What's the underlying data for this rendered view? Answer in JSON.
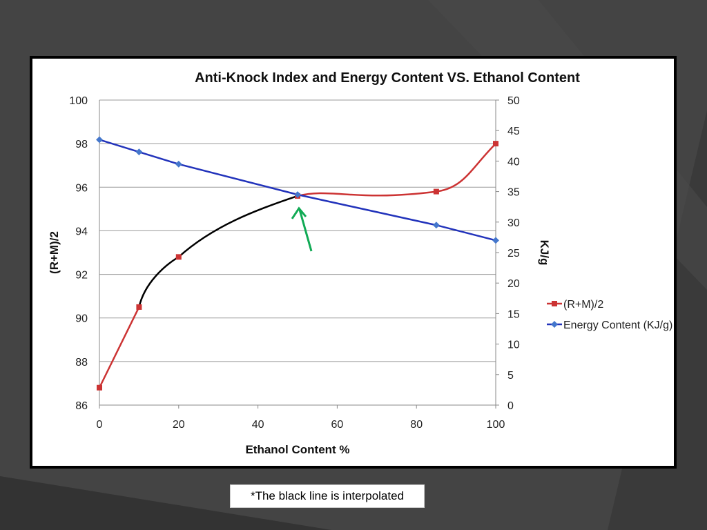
{
  "slide": {
    "note": "*The black line is interpolated",
    "colors": {
      "background": "#3a3a3a",
      "series_rm": "#cc3333",
      "series_energy": "#2233bb",
      "interpolated_line": "#000000",
      "arrow": "#11aa55"
    }
  },
  "chart_data": {
    "type": "line",
    "title": "Anti-Knock Index and Energy Content VS. Ethanol Content",
    "xlabel": "Ethanol Content %",
    "ylabel": "(R+M)/2",
    "y2label": "KJ/g",
    "xlim": [
      0,
      100
    ],
    "ylim": [
      86,
      100
    ],
    "y2lim": [
      0,
      50
    ],
    "xticks": [
      "0",
      "20",
      "40",
      "60",
      "80",
      "100"
    ],
    "yticks": [
      "86",
      "88",
      "90",
      "92",
      "94",
      "96",
      "98",
      "100"
    ],
    "y2ticks": [
      "0",
      "5",
      "10",
      "15",
      "20",
      "25",
      "30",
      "35",
      "40",
      "45",
      "50"
    ],
    "grid": true,
    "legend_position": "right",
    "series": [
      {
        "name": "(R+M)/2",
        "axis": "left",
        "x": [
          0,
          10,
          20,
          50,
          85,
          100
        ],
        "values": [
          86.8,
          90.5,
          92.8,
          95.6,
          95.8,
          98.0
        ]
      },
      {
        "name": "Energy Content (KJ/g)",
        "axis": "right",
        "x": [
          0,
          10,
          20,
          50,
          85,
          100
        ],
        "values": [
          43.5,
          41.5,
          39.5,
          34.5,
          29.5,
          27.0
        ]
      }
    ],
    "interpolated_range": [
      10,
      50
    ],
    "annotation": "arrow pointing at intersection near x=50"
  }
}
